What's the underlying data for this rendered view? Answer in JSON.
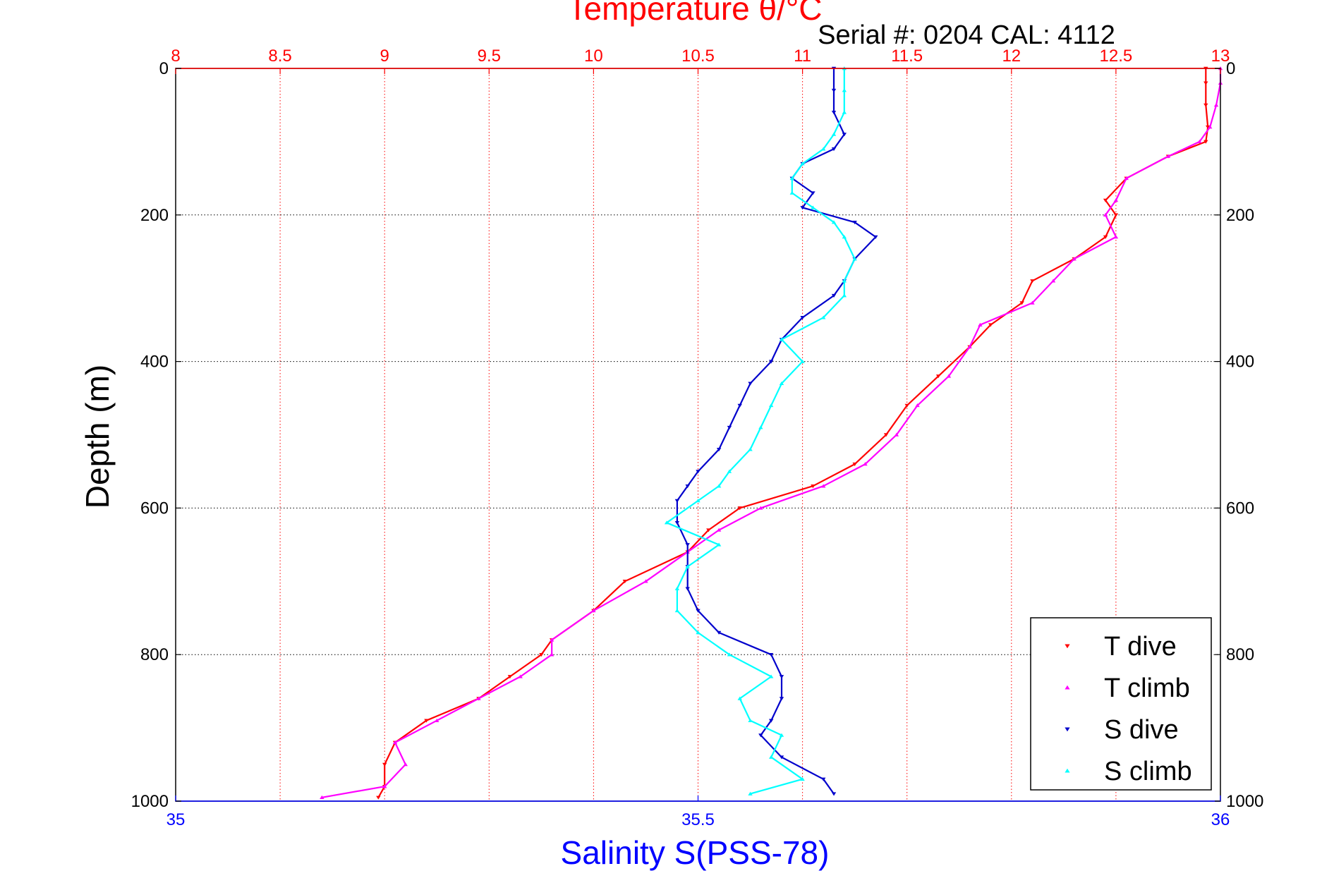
{
  "chart_data": {
    "type": "scatter",
    "title": "Temperature θ/°C",
    "subtitle": "Serial #: 0204  CAL: 4112",
    "xlabel_bottom": "Salinity S(PSS-78)",
    "ylabel": "Depth (m)",
    "x_top": {
      "label": "Temperature θ/°C",
      "range": [
        8,
        13
      ],
      "ticks": [
        "8",
        "8.5",
        "9",
        "9.5",
        "10",
        "10.5",
        "11",
        "11.5",
        "12",
        "12.5",
        "13"
      ],
      "tick_values": [
        8,
        8.5,
        9,
        9.5,
        10,
        10.5,
        11,
        11.5,
        12,
        12.5,
        13
      ],
      "color": "#ff0000",
      "grid": true
    },
    "x_bottom": {
      "label": "Salinity S(PSS-78)",
      "range": [
        35,
        36
      ],
      "ticks": [
        "35",
        "35.5",
        "36"
      ],
      "tick_values": [
        35,
        35.5,
        36
      ],
      "color": "#0000ff"
    },
    "y": {
      "label": "Depth (m)",
      "range": [
        0,
        1000
      ],
      "reversed": true,
      "ticks": [
        "0",
        "200",
        "400",
        "600",
        "800",
        "1000"
      ],
      "tick_values": [
        0,
        200,
        400,
        600,
        800,
        1000
      ],
      "grid": true
    },
    "legend": {
      "placement": "bottom-right"
    },
    "series": [
      {
        "name": "T dive",
        "axis": "top",
        "color": "#ff0000",
        "marker": "triangle-down",
        "depth": [
          0,
          20,
          50,
          80,
          100,
          120,
          150,
          180,
          200,
          230,
          260,
          290,
          320,
          350,
          380,
          420,
          460,
          500,
          540,
          570,
          600,
          630,
          660,
          700,
          740,
          780,
          800,
          830,
          860,
          890,
          920,
          950,
          980,
          995
        ],
        "values": [
          12.93,
          12.93,
          12.93,
          12.94,
          12.93,
          12.75,
          12.55,
          12.45,
          12.5,
          12.45,
          12.3,
          12.1,
          12.05,
          11.9,
          11.8,
          11.65,
          11.5,
          11.4,
          11.25,
          11.05,
          10.7,
          10.55,
          10.45,
          10.15,
          10.0,
          9.8,
          9.75,
          9.6,
          9.45,
          9.2,
          9.05,
          9.0,
          9.0,
          8.97
        ]
      },
      {
        "name": "T climb",
        "axis": "top",
        "color": "#ff00ff",
        "marker": "triangle-up",
        "depth": [
          0,
          20,
          50,
          80,
          100,
          120,
          150,
          180,
          200,
          230,
          260,
          290,
          320,
          350,
          380,
          420,
          460,
          500,
          540,
          570,
          600,
          630,
          660,
          700,
          740,
          780,
          800,
          830,
          860,
          890,
          920,
          950,
          980,
          995
        ],
        "values": [
          13.0,
          13.0,
          12.98,
          12.95,
          12.9,
          12.75,
          12.55,
          12.5,
          12.45,
          12.5,
          12.3,
          12.2,
          12.1,
          11.85,
          11.8,
          11.7,
          11.55,
          11.45,
          11.3,
          11.1,
          10.8,
          10.6,
          10.45,
          10.25,
          10.0,
          9.8,
          9.8,
          9.65,
          9.45,
          9.25,
          9.05,
          9.1,
          9.0,
          8.7
        ]
      },
      {
        "name": "S dive",
        "axis": "bottom",
        "color": "#0000cc",
        "marker": "triangle-down",
        "depth": [
          0,
          30,
          60,
          90,
          110,
          130,
          150,
          170,
          190,
          210,
          230,
          260,
          290,
          310,
          340,
          370,
          400,
          430,
          460,
          490,
          520,
          550,
          570,
          590,
          620,
          650,
          680,
          710,
          740,
          770,
          800,
          830,
          860,
          890,
          910,
          940,
          970,
          990
        ],
        "values": [
          35.63,
          35.63,
          35.63,
          35.64,
          35.63,
          35.6,
          35.59,
          35.61,
          35.6,
          35.65,
          35.67,
          35.65,
          35.64,
          35.63,
          35.6,
          35.58,
          35.57,
          35.55,
          35.54,
          35.53,
          35.52,
          35.5,
          35.49,
          35.48,
          35.48,
          35.49,
          35.49,
          35.49,
          35.5,
          35.52,
          35.57,
          35.58,
          35.58,
          35.57,
          35.56,
          35.58,
          35.62,
          35.63
        ]
      },
      {
        "name": "S climb",
        "axis": "bottom",
        "color": "#00ffff",
        "marker": "triangle-up",
        "depth": [
          0,
          30,
          60,
          90,
          110,
          130,
          150,
          170,
          190,
          210,
          230,
          260,
          290,
          310,
          340,
          370,
          400,
          430,
          460,
          490,
          520,
          550,
          570,
          590,
          620,
          650,
          680,
          710,
          740,
          770,
          800,
          830,
          860,
          890,
          910,
          940,
          970,
          990
        ],
        "values": [
          35.64,
          35.64,
          35.64,
          35.63,
          35.62,
          35.6,
          35.59,
          35.59,
          35.61,
          35.63,
          35.64,
          35.65,
          35.64,
          35.64,
          35.62,
          35.58,
          35.6,
          35.58,
          35.57,
          35.56,
          35.55,
          35.53,
          35.52,
          35.5,
          35.47,
          35.52,
          35.49,
          35.48,
          35.48,
          35.5,
          35.53,
          35.57,
          35.54,
          35.55,
          35.58,
          35.57,
          35.6,
          35.55
        ]
      }
    ]
  }
}
